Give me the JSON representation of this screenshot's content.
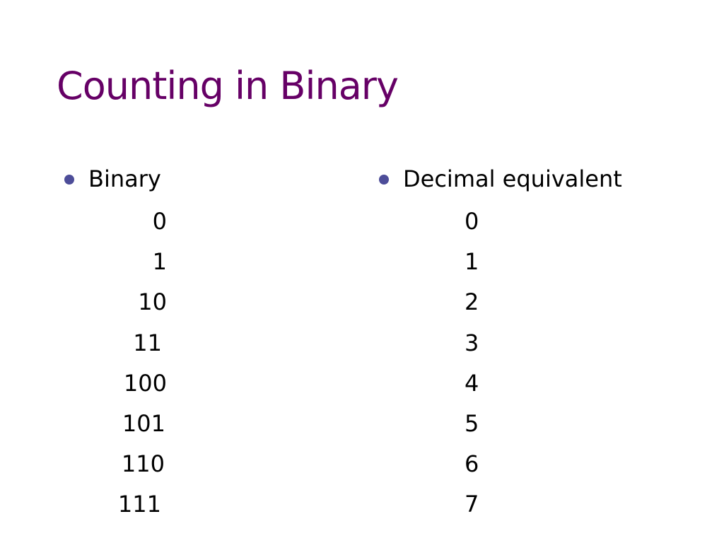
{
  "slide": {
    "title": "Counting in Binary",
    "title_color": "#660066",
    "bullet_color": "#4d4d99",
    "columns": [
      {
        "heading": "Binary",
        "values": [
          "0",
          "1",
          "10",
          "11",
          "100",
          "101",
          "110",
          "111"
        ]
      },
      {
        "heading": "Decimal equivalent",
        "values": [
          "0",
          "1",
          "2",
          "3",
          "4",
          "5",
          "6",
          "7"
        ]
      }
    ]
  }
}
